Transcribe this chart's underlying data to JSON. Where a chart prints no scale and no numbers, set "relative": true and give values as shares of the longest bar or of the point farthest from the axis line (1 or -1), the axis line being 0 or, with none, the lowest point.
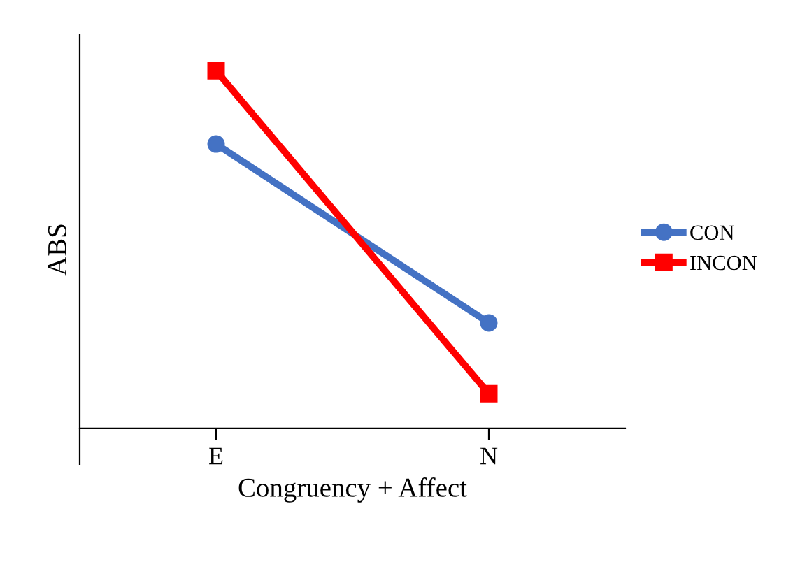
{
  "chart_data": {
    "type": "line",
    "xlabel": "Congruency + Affect",
    "ylabel": "ABS",
    "categories": [
      "E",
      "N"
    ],
    "relative": true,
    "legend": "right",
    "series": [
      {
        "name": "CON",
        "color": "#4472c4",
        "marker": "circle",
        "values": [
          0.795,
          0.295
        ]
      },
      {
        "name": "INCON",
        "color": "#ff0000",
        "marker": "square",
        "values": [
          1,
          0.097
        ]
      }
    ]
  }
}
